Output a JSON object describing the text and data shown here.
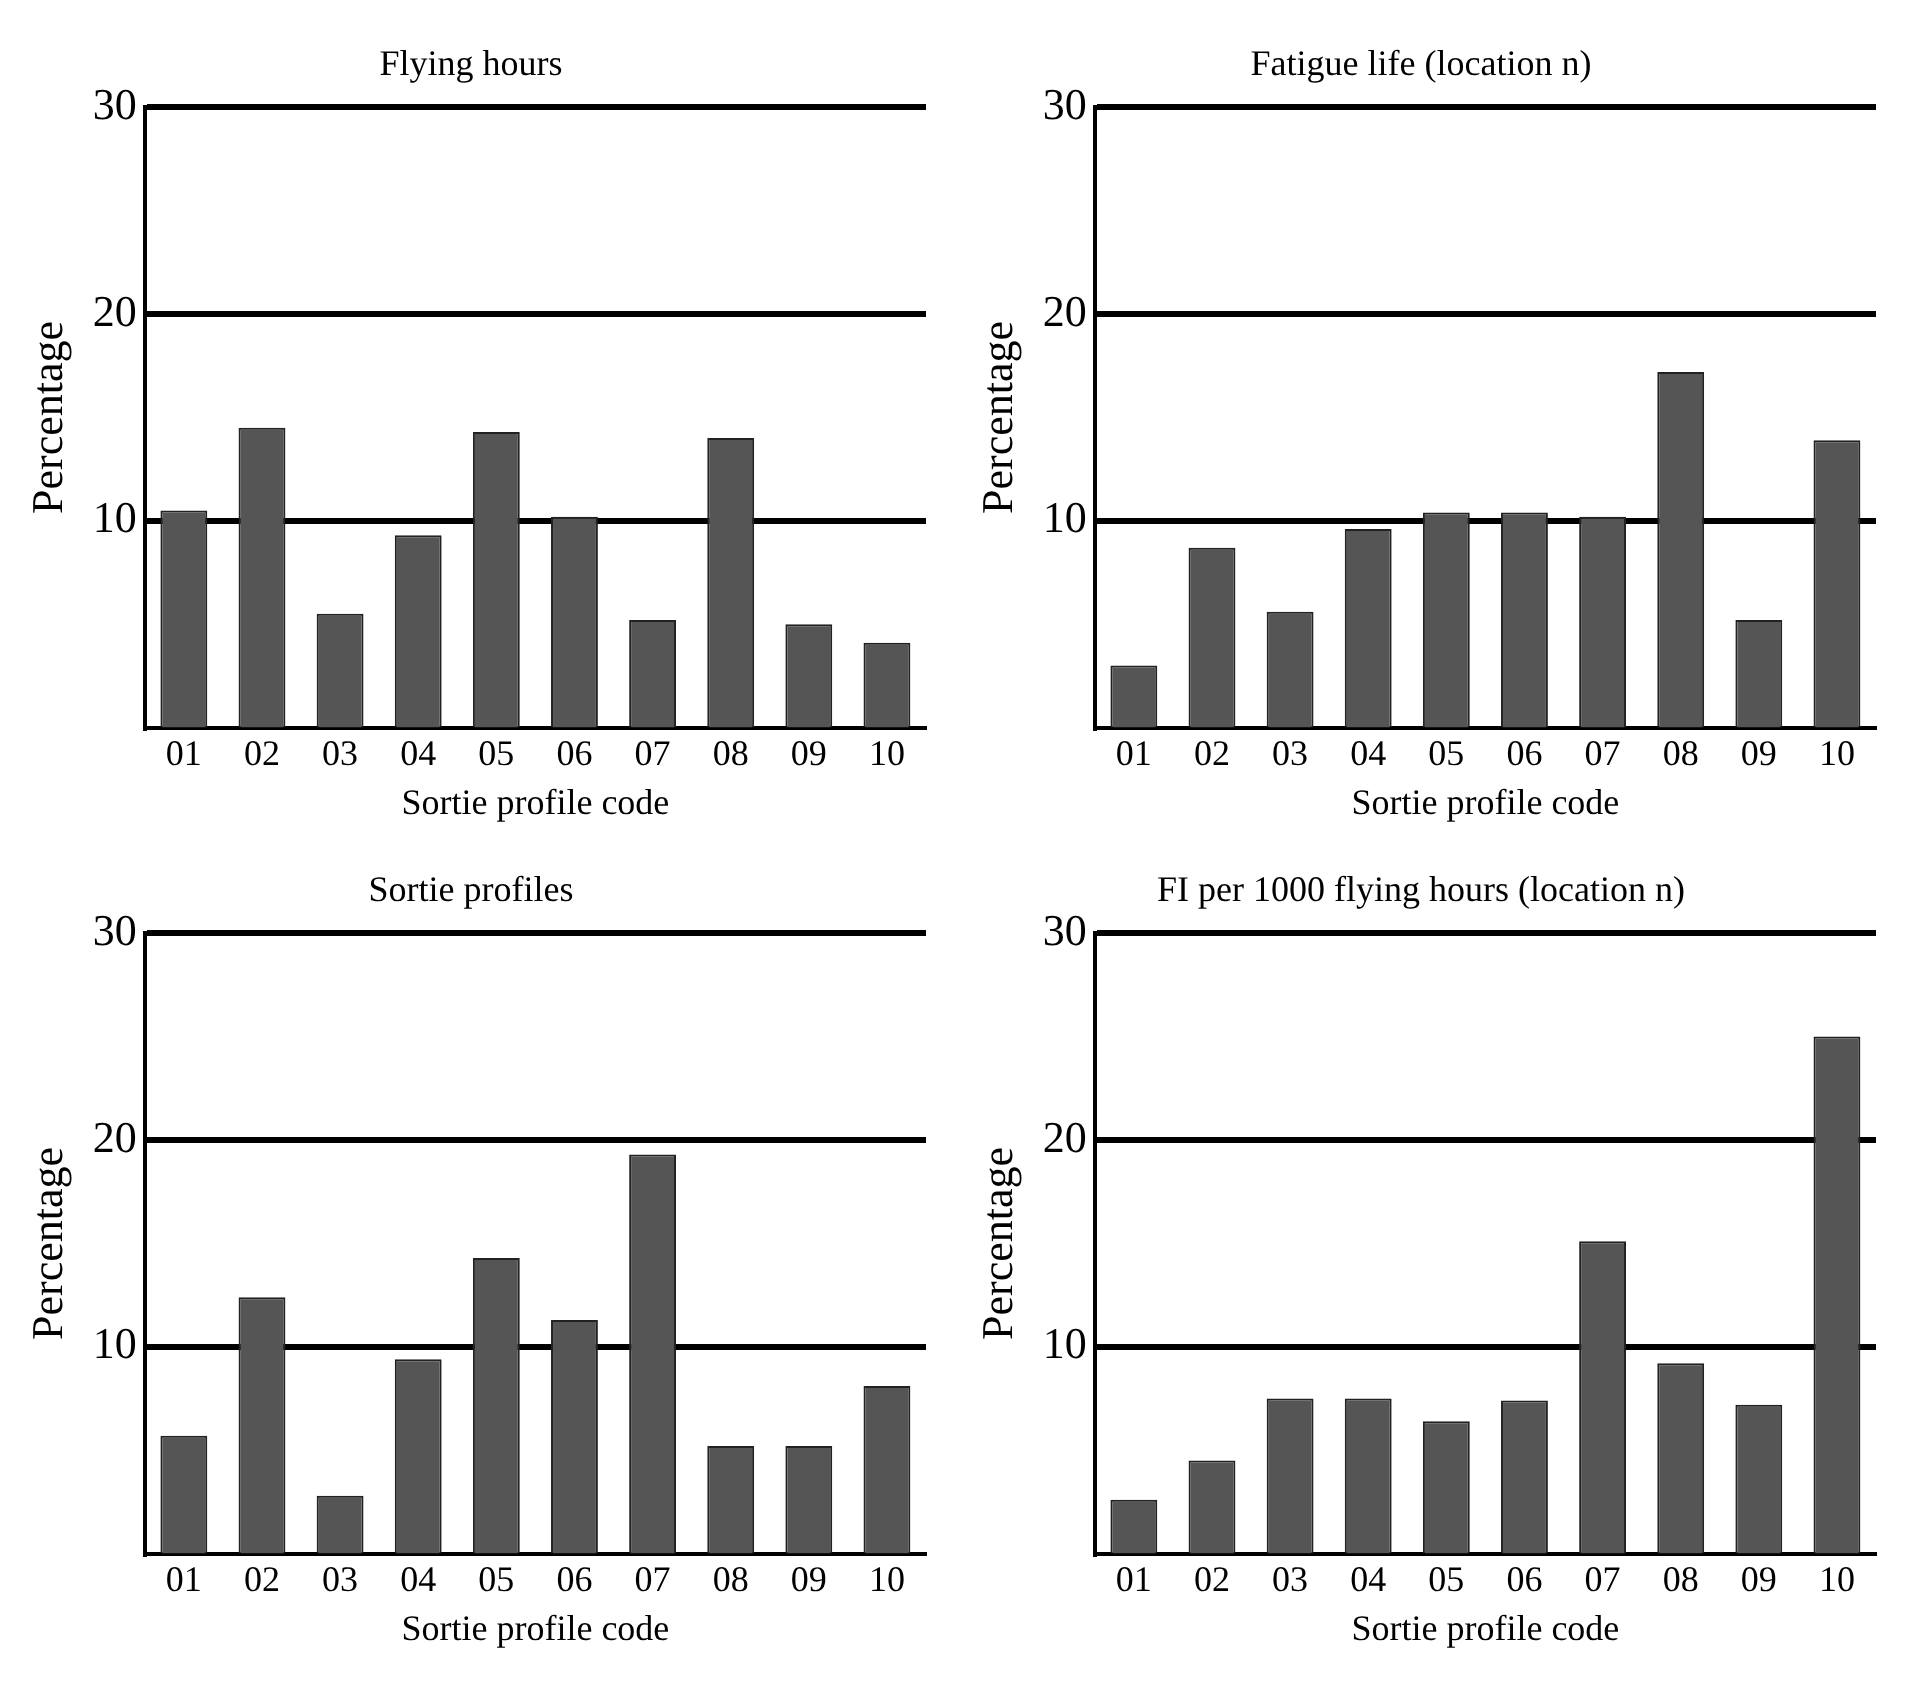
{
  "chart_data": [
    {
      "type": "bar",
      "title": "Flying hours",
      "xlabel": "Sortie profile code",
      "ylabel": "Percentage",
      "categories": [
        "01",
        "02",
        "03",
        "04",
        "05",
        "06",
        "07",
        "08",
        "09",
        "10"
      ],
      "values": [
        10.5,
        14.5,
        5.5,
        9.3,
        14.3,
        10.2,
        5.2,
        14,
        5,
        4.1
      ],
      "color": "#555555",
      "ylim": [
        0,
        30
      ],
      "yticks": [
        10,
        20,
        30
      ],
      "grid": "y"
    },
    {
      "type": "bar",
      "title": "Fatigue life (location n)",
      "xlabel": "Sortie profile code",
      "ylabel": "Percentage",
      "categories": [
        "01",
        "02",
        "03",
        "04",
        "05",
        "06",
        "07",
        "08",
        "09",
        "10"
      ],
      "values": [
        3,
        8.7,
        5.6,
        9.6,
        10.4,
        10.4,
        10.2,
        17.2,
        5.2,
        13.9
      ],
      "color": "#555555",
      "ylim": [
        0,
        30
      ],
      "yticks": [
        10,
        20,
        30
      ],
      "grid": "y"
    },
    {
      "type": "bar",
      "title": "Sortie profiles",
      "xlabel": "Sortie profile code",
      "ylabel": "Percentage",
      "categories": [
        "01",
        "02",
        "03",
        "04",
        "05",
        "06",
        "07",
        "08",
        "09",
        "10"
      ],
      "values": [
        5.7,
        12.4,
        2.8,
        9.4,
        14.3,
        11.3,
        19.3,
        5.2,
        5.2,
        8.1
      ],
      "color": "#555555",
      "ylim": [
        0,
        30
      ],
      "yticks": [
        10,
        20,
        30
      ],
      "grid": "y"
    },
    {
      "type": "bar",
      "title": "FI per 1000 flying hours (location n)",
      "xlabel": "Sortie profile code",
      "ylabel": "Percentage",
      "categories": [
        "01",
        "02",
        "03",
        "04",
        "05",
        "06",
        "07",
        "08",
        "09",
        "10"
      ],
      "values": [
        2.6,
        4.5,
        7.5,
        7.5,
        6.4,
        7.4,
        15.1,
        9.2,
        7.2,
        25
      ],
      "color": "#555555",
      "ylim": [
        0,
        30
      ],
      "yticks": [
        10,
        20,
        30
      ],
      "grid": "y"
    }
  ]
}
